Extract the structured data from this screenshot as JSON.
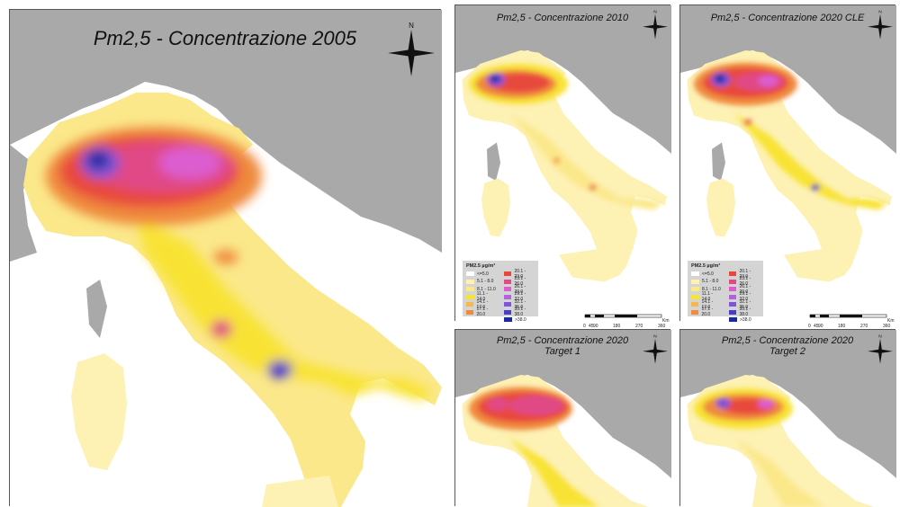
{
  "panels": {
    "main": {
      "title": "Pm2,5 - Concentrazione 2005"
    },
    "p2010": {
      "title": "Pm2,5 - Concentrazione 2010"
    },
    "p2020cle": {
      "title": "Pm2,5 - Concentrazione 2020 CLE"
    },
    "t1": {
      "title_line1": "Pm2,5 - Concentrazione 2020",
      "title_line2": "Target 1"
    },
    "t2": {
      "title_line1": "Pm2,5 - Concentrazione 2020",
      "title_line2": "Target 2"
    }
  },
  "compass": {
    "north": "N"
  },
  "legend": {
    "title": "PM2.5 µg/m³",
    "classes": [
      {
        "label": "<=5.0",
        "color": "#ffffff"
      },
      {
        "label": "5.1 - 8.0",
        "color": "#fdf1b4"
      },
      {
        "label": "8.1 - 11.0",
        "color": "#fbe88a"
      },
      {
        "label": "11.1 - 14.0",
        "color": "#f8e336"
      },
      {
        "label": "14.1 - 17.0",
        "color": "#f6b74d"
      },
      {
        "label": "17.1 - 20.0",
        "color": "#ef8a3e"
      },
      {
        "label": "20.1 - 23.0",
        "color": "#e8483c"
      },
      {
        "label": "23.1 - 26.0",
        "color": "#e04a86"
      },
      {
        "label": "26.1 - 29.0",
        "color": "#dc5dd0"
      },
      {
        "label": "29.1 - 32.0",
        "color": "#b560e0"
      },
      {
        "label": "32.1 - 35.0",
        "color": "#7e55d6"
      },
      {
        "label": "35.1 - 38.0",
        "color": "#4b3bc8"
      },
      {
        "label": ">38.0",
        "color": "#1a2a9e"
      }
    ]
  },
  "scalebar": {
    "ticks": [
      "0",
      "45",
      "90",
      "180",
      "270",
      "360"
    ],
    "unit": "Km"
  },
  "colors": {
    "sea": "#ffffff",
    "background_land": "#a9a9a9",
    "border": "#555555"
  }
}
